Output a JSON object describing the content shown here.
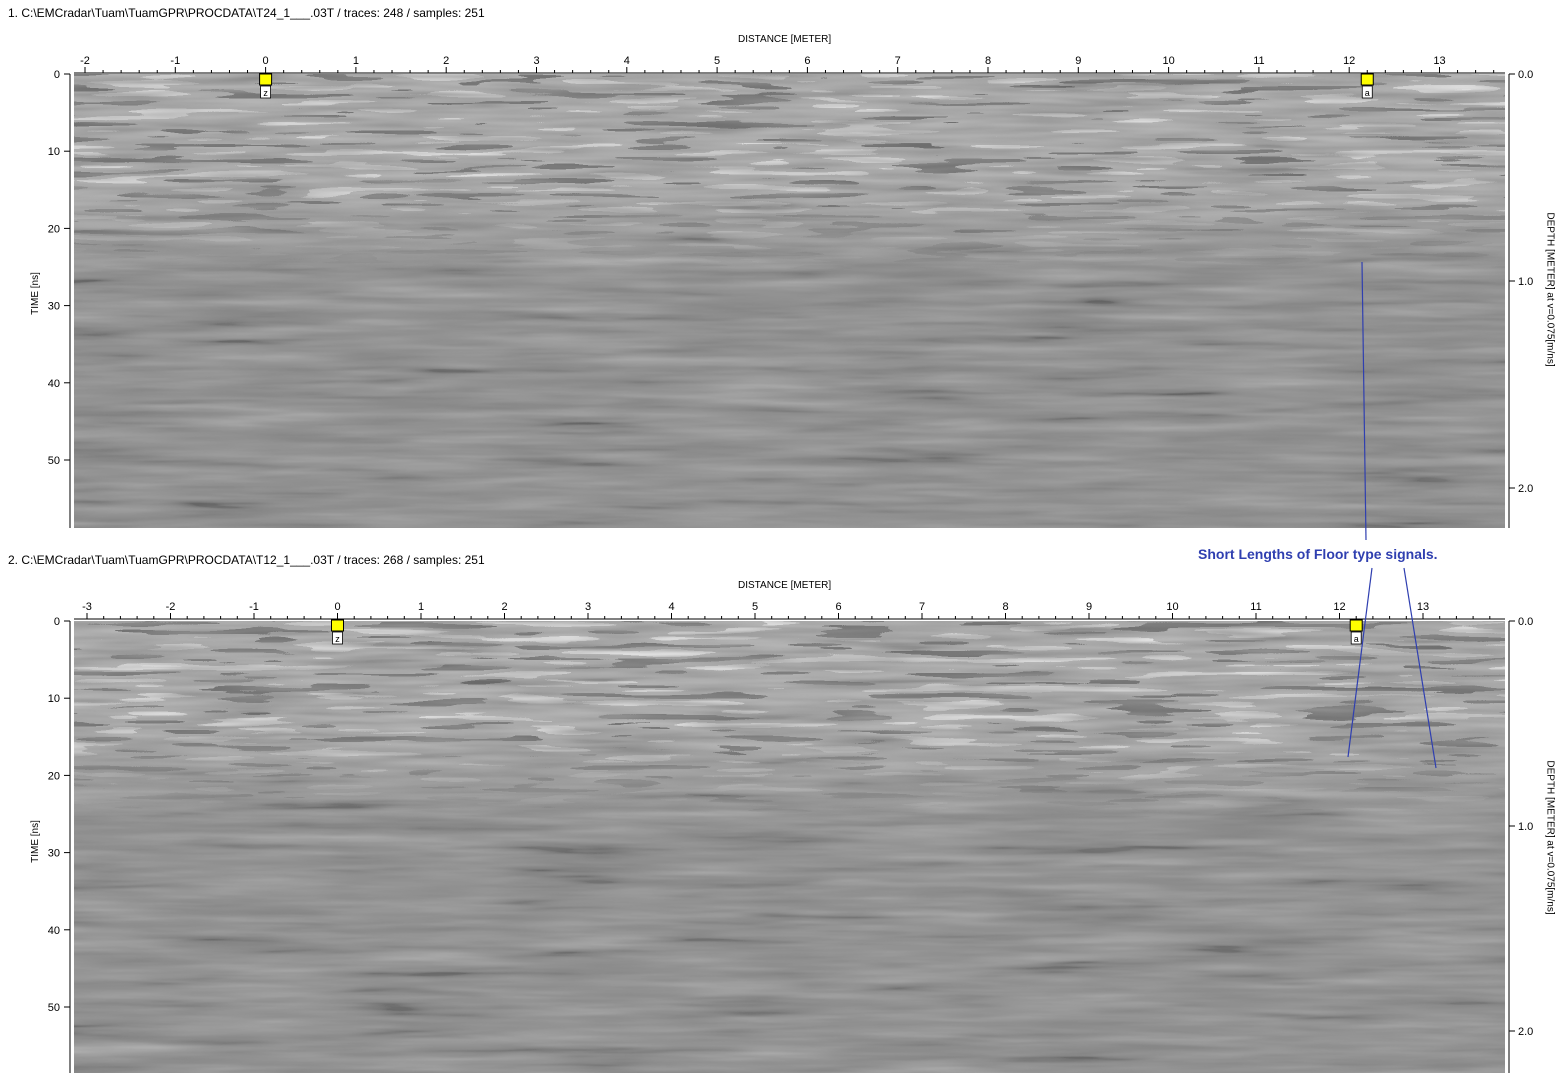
{
  "profiles": [
    {
      "path_title": "1. C:\\EMCradar\\Tuam\\TuamGPR\\PROCDATA\\T24_1___.03T / traces: 248 / samples: 251",
      "distance_axis_title": "DISTANCE [METER]",
      "time_axis_title": "TIME [ns]",
      "depth_axis_title": "DEPTH [METER] at v=0.075[m/ns]",
      "distance_ticks": [
        "-2",
        "-1",
        "0",
        "1",
        "2",
        "3",
        "4",
        "5",
        "6",
        "7",
        "8",
        "9",
        "10",
        "11",
        "12",
        "13"
      ],
      "time_ticks": [
        "0",
        "10",
        "20",
        "30",
        "40",
        "50"
      ],
      "depth_ticks": [
        "0.0",
        "1.0",
        "2.0"
      ],
      "markers": [
        {
          "label": "z",
          "distance": 0
        },
        {
          "label": "a",
          "distance": 12.2
        }
      ]
    },
    {
      "path_title": "2. C:\\EMCradar\\Tuam\\TuamGPR\\PROCDATA\\T12_1___.03T / traces: 268 / samples: 251",
      "distance_axis_title": "DISTANCE [METER]",
      "time_axis_title": "TIME [ns]",
      "depth_axis_title": "DEPTH [METER] at v=0.075[m/ns]",
      "distance_ticks": [
        "-3",
        "-2",
        "-1",
        "0",
        "1",
        "2",
        "3",
        "4",
        "5",
        "6",
        "7",
        "8",
        "9",
        "10",
        "11",
        "12",
        "13"
      ],
      "time_ticks": [
        "0",
        "10",
        "20",
        "30",
        "40",
        "50"
      ],
      "depth_ticks": [
        "0.0",
        "1.0",
        "2.0"
      ],
      "markers": [
        {
          "label": "z",
          "distance": 0
        },
        {
          "label": "a",
          "distance": 12.2
        }
      ]
    }
  ],
  "annotation": {
    "text": "Short Lengths of Floor type signals.",
    "color": "#2f3fb0"
  }
}
